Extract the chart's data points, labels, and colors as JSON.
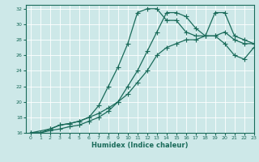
{
  "xlabel": "Humidex (Indice chaleur)",
  "bg_color": "#cde8e8",
  "line_color": "#1a6b5a",
  "grid_color": "#ffffff",
  "xlim": [
    -0.5,
    23
  ],
  "ylim": [
    16,
    32.5
  ],
  "xticks": [
    0,
    1,
    2,
    3,
    4,
    5,
    6,
    7,
    8,
    9,
    10,
    11,
    12,
    13,
    14,
    15,
    16,
    17,
    18,
    19,
    20,
    21,
    22,
    23
  ],
  "yticks": [
    16,
    18,
    20,
    22,
    24,
    26,
    28,
    30,
    32
  ],
  "line1_x": [
    0,
    1,
    2,
    3,
    4,
    5,
    6,
    7,
    8,
    9,
    10,
    11,
    12,
    13,
    14,
    15,
    16,
    17,
    18,
    19,
    20,
    21,
    22,
    23
  ],
  "line1_y": [
    16,
    16,
    16.5,
    17,
    17.2,
    17.5,
    18,
    18.5,
    19.2,
    20,
    21,
    22.5,
    24,
    26,
    27,
    27.5,
    28,
    28,
    28.5,
    28.5,
    29,
    28,
    27.5,
    27.5
  ],
  "line2_x": [
    0,
    1,
    2,
    3,
    4,
    5,
    6,
    7,
    8,
    9,
    10,
    11,
    12,
    13,
    14,
    15,
    16,
    17,
    18,
    19,
    20,
    21,
    22,
    23
  ],
  "line2_y": [
    16,
    16,
    16.3,
    16.5,
    16.8,
    17,
    17.5,
    18,
    18.8,
    20,
    22,
    24,
    26.5,
    29,
    31.5,
    31.5,
    31,
    29.5,
    28.5,
    28.5,
    27.5,
    26,
    25.5,
    27
  ],
  "line3_x": [
    0,
    2,
    3,
    4,
    5,
    6,
    7,
    8,
    9,
    10,
    11,
    12,
    13,
    14,
    15,
    16,
    17,
    18,
    19,
    20,
    21,
    22,
    23
  ],
  "line3_y": [
    16,
    16.5,
    17,
    17.2,
    17.5,
    18,
    19.5,
    22,
    24.5,
    27.5,
    31.5,
    32,
    32,
    30.5,
    30.5,
    29,
    28.5,
    28.5,
    31.5,
    31.5,
    28.5,
    28,
    27.5
  ]
}
